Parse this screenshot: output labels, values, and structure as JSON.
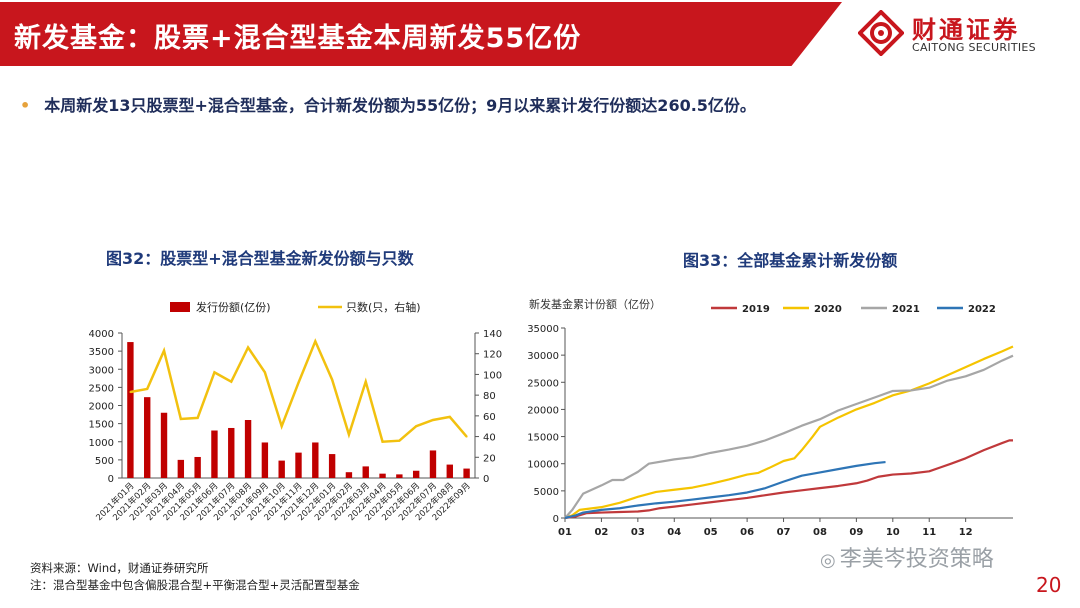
{
  "header": {
    "title": "新发基金：股票+混合型基金本周新发55亿份",
    "logo_cn": "财通证券",
    "logo_en": "CAITONG SECURITIES"
  },
  "bullet": {
    "dot": "•",
    "text": "本周新发13只股票型+混合型基金，合计新发份额为55亿份；9月以来累计发行份额达260.5亿份。"
  },
  "figure32": {
    "title": "图32：股票型+混合型基金新发份额与只数"
  },
  "figure33": {
    "title": "图33：全部基金累计新发份额"
  },
  "notes": {
    "source": "资料来源：Wind，财通证券研究所",
    "note": "注：混合型基金中包含偏股混合型+平衡混合型+灵活配置型基金"
  },
  "watermark": "李美岑投资策略",
  "page_number": "20",
  "colors": {
    "brand_red": "#c8161d",
    "bar_red": "#c00000",
    "line_yellow": "#f2c10f",
    "series_2019": "#c0393b",
    "series_2020": "#f5c400",
    "series_2021": "#a6a6a6",
    "series_2022": "#2e75b6"
  },
  "chart_data": [
    {
      "type": "bar",
      "categories": [
        "2021年01月",
        "2021年02月",
        "2021年03月",
        "2021年04月",
        "2021年05月",
        "2021年06月",
        "2021年07月",
        "2021年08月",
        "2021年09月",
        "2021年10月",
        "2021年11月",
        "2021年12月",
        "2022年01月",
        "2022年02月",
        "2022年03月",
        "2022年04月",
        "2022年05月",
        "2022年06月",
        "2022年07月",
        "2022年08月",
        "2022年09月"
      ],
      "series": [
        {
          "name": "发行份额(亿份)",
          "kind": "bar",
          "axis": "left",
          "values": [
            3750,
            2230,
            1800,
            500,
            580,
            1310,
            1380,
            1600,
            980,
            480,
            700,
            980,
            660,
            160,
            320,
            120,
            100,
            200,
            760,
            370,
            260
          ]
        },
        {
          "name": "只数(只，右轴)",
          "kind": "line",
          "axis": "right",
          "values": [
            83,
            86,
            123,
            57,
            58,
            102,
            93,
            126,
            102,
            50,
            92,
            132,
            95,
            42,
            93,
            35,
            36,
            50,
            56,
            59,
            40
          ]
        }
      ],
      "ylim": [
        0,
        4000
      ],
      "yticks": [
        0,
        500,
        1000,
        1500,
        2000,
        2500,
        3000,
        3500,
        4000
      ],
      "y2lim": [
        0,
        140
      ],
      "y2ticks": [
        0,
        20,
        40,
        60,
        80,
        100,
        120,
        140
      ],
      "legend_position": "top"
    },
    {
      "type": "line",
      "ylabel": "新发基金累计份额（亿份）",
      "x_ticks": [
        "01",
        "02",
        "03",
        "04",
        "05",
        "06",
        "07",
        "08",
        "09",
        "10",
        "11",
        "12"
      ],
      "xlim": [
        1,
        13.3
      ],
      "ylim": [
        0,
        35000
      ],
      "yticks": [
        0,
        5000,
        10000,
        15000,
        20000,
        25000,
        30000,
        35000
      ],
      "legend_position": "top",
      "series": [
        {
          "name": "2019",
          "color": "#c0393b",
          "points": [
            [
              1.0,
              0
            ],
            [
              1.3,
              300
            ],
            [
              1.6,
              900
            ],
            [
              2.0,
              1000
            ],
            [
              2.5,
              1100
            ],
            [
              3.0,
              1200
            ],
            [
              3.3,
              1400
            ],
            [
              3.6,
              1800
            ],
            [
              4.0,
              2100
            ],
            [
              4.5,
              2500
            ],
            [
              5.0,
              2900
            ],
            [
              5.5,
              3300
            ],
            [
              6.0,
              3700
            ],
            [
              6.5,
              4200
            ],
            [
              7.0,
              4700
            ],
            [
              7.5,
              5100
            ],
            [
              8.0,
              5500
            ],
            [
              8.5,
              5900
            ],
            [
              9.0,
              6400
            ],
            [
              9.3,
              6900
            ],
            [
              9.6,
              7600
            ],
            [
              10.0,
              8000
            ],
            [
              10.5,
              8200
            ],
            [
              11.0,
              8600
            ],
            [
              11.3,
              9300
            ],
            [
              11.6,
              10000
            ],
            [
              12.0,
              11000
            ],
            [
              12.5,
              12500
            ],
            [
              13.0,
              13800
            ],
            [
              13.2,
              14300
            ],
            [
              13.3,
              14300
            ]
          ]
        },
        {
          "name": "2020",
          "color": "#f5c400",
          "points": [
            [
              1.0,
              0
            ],
            [
              1.2,
              500
            ],
            [
              1.4,
              1500
            ],
            [
              2.0,
              2000
            ],
            [
              2.5,
              2800
            ],
            [
              3.0,
              3900
            ],
            [
              3.5,
              4800
            ],
            [
              4.0,
              5200
            ],
            [
              4.5,
              5600
            ],
            [
              5.0,
              6300
            ],
            [
              5.5,
              7100
            ],
            [
              6.0,
              8000
            ],
            [
              6.3,
              8300
            ],
            [
              6.6,
              9200
            ],
            [
              7.0,
              10500
            ],
            [
              7.3,
              11000
            ],
            [
              7.5,
              12500
            ],
            [
              7.8,
              15000
            ],
            [
              8.0,
              16800
            ],
            [
              8.5,
              18500
            ],
            [
              9.0,
              20000
            ],
            [
              9.5,
              21200
            ],
            [
              10.0,
              22600
            ],
            [
              10.5,
              23500
            ],
            [
              11.0,
              24800
            ],
            [
              11.5,
              26300
            ],
            [
              12.0,
              27800
            ],
            [
              12.5,
              29300
            ],
            [
              13.0,
              30700
            ],
            [
              13.3,
              31600
            ]
          ]
        },
        {
          "name": "2021",
          "color": "#a6a6a6",
          "points": [
            [
              1.0,
              0
            ],
            [
              1.2,
              1500
            ],
            [
              1.5,
              4500
            ],
            [
              2.0,
              6000
            ],
            [
              2.3,
              7000
            ],
            [
              2.6,
              7000
            ],
            [
              3.0,
              8500
            ],
            [
              3.3,
              10000
            ],
            [
              4.0,
              10800
            ],
            [
              4.5,
              11200
            ],
            [
              5.0,
              12000
            ],
            [
              5.5,
              12600
            ],
            [
              6.0,
              13300
            ],
            [
              6.5,
              14300
            ],
            [
              7.0,
              15600
            ],
            [
              7.5,
              17000
            ],
            [
              8.0,
              18200
            ],
            [
              8.5,
              19800
            ],
            [
              9.0,
              21000
            ],
            [
              9.5,
              22200
            ],
            [
              10.0,
              23400
            ],
            [
              10.5,
              23500
            ],
            [
              11.0,
              24000
            ],
            [
              11.5,
              25300
            ],
            [
              12.0,
              26100
            ],
            [
              12.5,
              27300
            ],
            [
              13.0,
              29000
            ],
            [
              13.3,
              29900
            ]
          ]
        },
        {
          "name": "2022",
          "color": "#2e75b6",
          "points": [
            [
              1.0,
              0
            ],
            [
              1.3,
              500
            ],
            [
              1.5,
              1000
            ],
            [
              2.0,
              1500
            ],
            [
              2.5,
              1800
            ],
            [
              3.0,
              2300
            ],
            [
              3.5,
              2700
            ],
            [
              4.0,
              3000
            ],
            [
              4.5,
              3400
            ],
            [
              5.0,
              3800
            ],
            [
              5.5,
              4200
            ],
            [
              6.0,
              4700
            ],
            [
              6.5,
              5500
            ],
            [
              7.0,
              6700
            ],
            [
              7.5,
              7800
            ],
            [
              8.0,
              8400
            ],
            [
              8.5,
              9000
            ],
            [
              9.0,
              9600
            ],
            [
              9.5,
              10100
            ],
            [
              9.8,
              10300
            ]
          ]
        }
      ]
    }
  ]
}
